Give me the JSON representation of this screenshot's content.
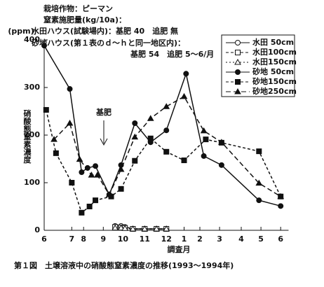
{
  "chart_data": {
    "type": "line",
    "caption": "第１図　土壌溶液中の硝酸態窒素濃度の推移(1993～1994年)",
    "notes": [
      "栽培作物：ピーマン",
      "窒素施肥量(kg/10a)：",
      "水田ハウス(試験場内)：基肥 40　追肥 無",
      "砂地ハウス(第１表のｄ～ｈと同一地区内)：",
      "基肥 54　追肥 5～6/月"
    ],
    "arrow_label": "基肥",
    "y_unit": "(ppm)",
    "y_label": "硝酸態窒素濃度",
    "x_label": "調査月",
    "xlim": [
      0,
      12.4
    ],
    "ylim": [
      0,
      400
    ],
    "yticks": [
      0,
      100,
      200,
      300,
      400
    ],
    "xticks": [
      {
        "value": 0,
        "label": "6"
      },
      {
        "value": 1.4,
        "label": "7"
      },
      {
        "value": 2.0,
        "label": "8"
      },
      {
        "value": 3.0,
        "label": "9"
      },
      {
        "value": 4.0,
        "label": "10"
      },
      {
        "value": 5.1,
        "label": "11"
      },
      {
        "value": 6.2,
        "label": "12"
      },
      {
        "value": 7.1,
        "label": "1"
      },
      {
        "value": 7.9,
        "label": "2"
      },
      {
        "value": 8.9,
        "label": "3"
      },
      {
        "value": 10.0,
        "label": "4"
      },
      {
        "value": 11.0,
        "label": "5"
      },
      {
        "value": 12.0,
        "label": "6"
      }
    ],
    "series": [
      {
        "name": "水田 50cm",
        "color": "#111",
        "marker": "circle-open",
        "dash": "none",
        "x": [
          3.6,
          3.9,
          4.1,
          4.5,
          5.1,
          5.7,
          6.2
        ],
        "values": [
          9,
          9,
          7,
          3,
          3,
          3,
          3
        ]
      },
      {
        "name": "水田100cm",
        "color": "#111",
        "marker": "square-open",
        "dash": "4 3",
        "x": [
          3.6,
          3.9,
          4.1,
          4.5,
          5.1,
          5.7,
          6.2
        ],
        "values": [
          7,
          6,
          5,
          3,
          3,
          3,
          3
        ]
      },
      {
        "name": "水田150cm",
        "color": "#111",
        "marker": "triangle-open",
        "dash": "2 3",
        "x": [
          3.6,
          3.9,
          4.1,
          4.5,
          5.1,
          5.7,
          6.2
        ],
        "values": [
          5,
          5,
          4,
          3,
          3,
          3,
          3
        ]
      },
      {
        "name": "砂地 50cm",
        "color": "#111",
        "marker": "circle",
        "dash": "none",
        "x": [
          0,
          1.3,
          1.9,
          2.2,
          2.6,
          3.3,
          3.9,
          4.6,
          5.4,
          6.2,
          7.2,
          8.1,
          9.0,
          10.9,
          12.0
        ],
        "values": [
          388,
          297,
          122,
          131,
          135,
          75,
          137,
          225,
          185,
          210,
          329,
          156,
          137,
          63,
          51
        ]
      },
      {
        "name": "砂地150cm",
        "color": "#111",
        "marker": "square",
        "dash": "4 3",
        "x": [
          0.1,
          0.6,
          1.4,
          1.9,
          2.3,
          2.6,
          3.4,
          3.9,
          4.6,
          5.4,
          6.2,
          7.1,
          8.2,
          9.0,
          10.9,
          12.0
        ],
        "values": [
          253,
          162,
          100,
          37,
          50,
          63,
          71,
          87,
          146,
          193,
          165,
          147,
          191,
          184,
          166,
          71
        ]
      },
      {
        "name": "砂地250cm",
        "color": "#111",
        "marker": "triangle",
        "dash": "7 4",
        "x": [
          0.5,
          1.3,
          1.8,
          2.4,
          2.7,
          3.3,
          3.9,
          4.6,
          5.4,
          6.2,
          7.1,
          8.1,
          9.0,
          10.9,
          12.0
        ],
        "values": [
          191,
          225,
          149,
          116,
          116,
          75,
          128,
          196,
          235,
          260,
          281,
          209,
          185,
          99,
          71
        ]
      }
    ]
  }
}
